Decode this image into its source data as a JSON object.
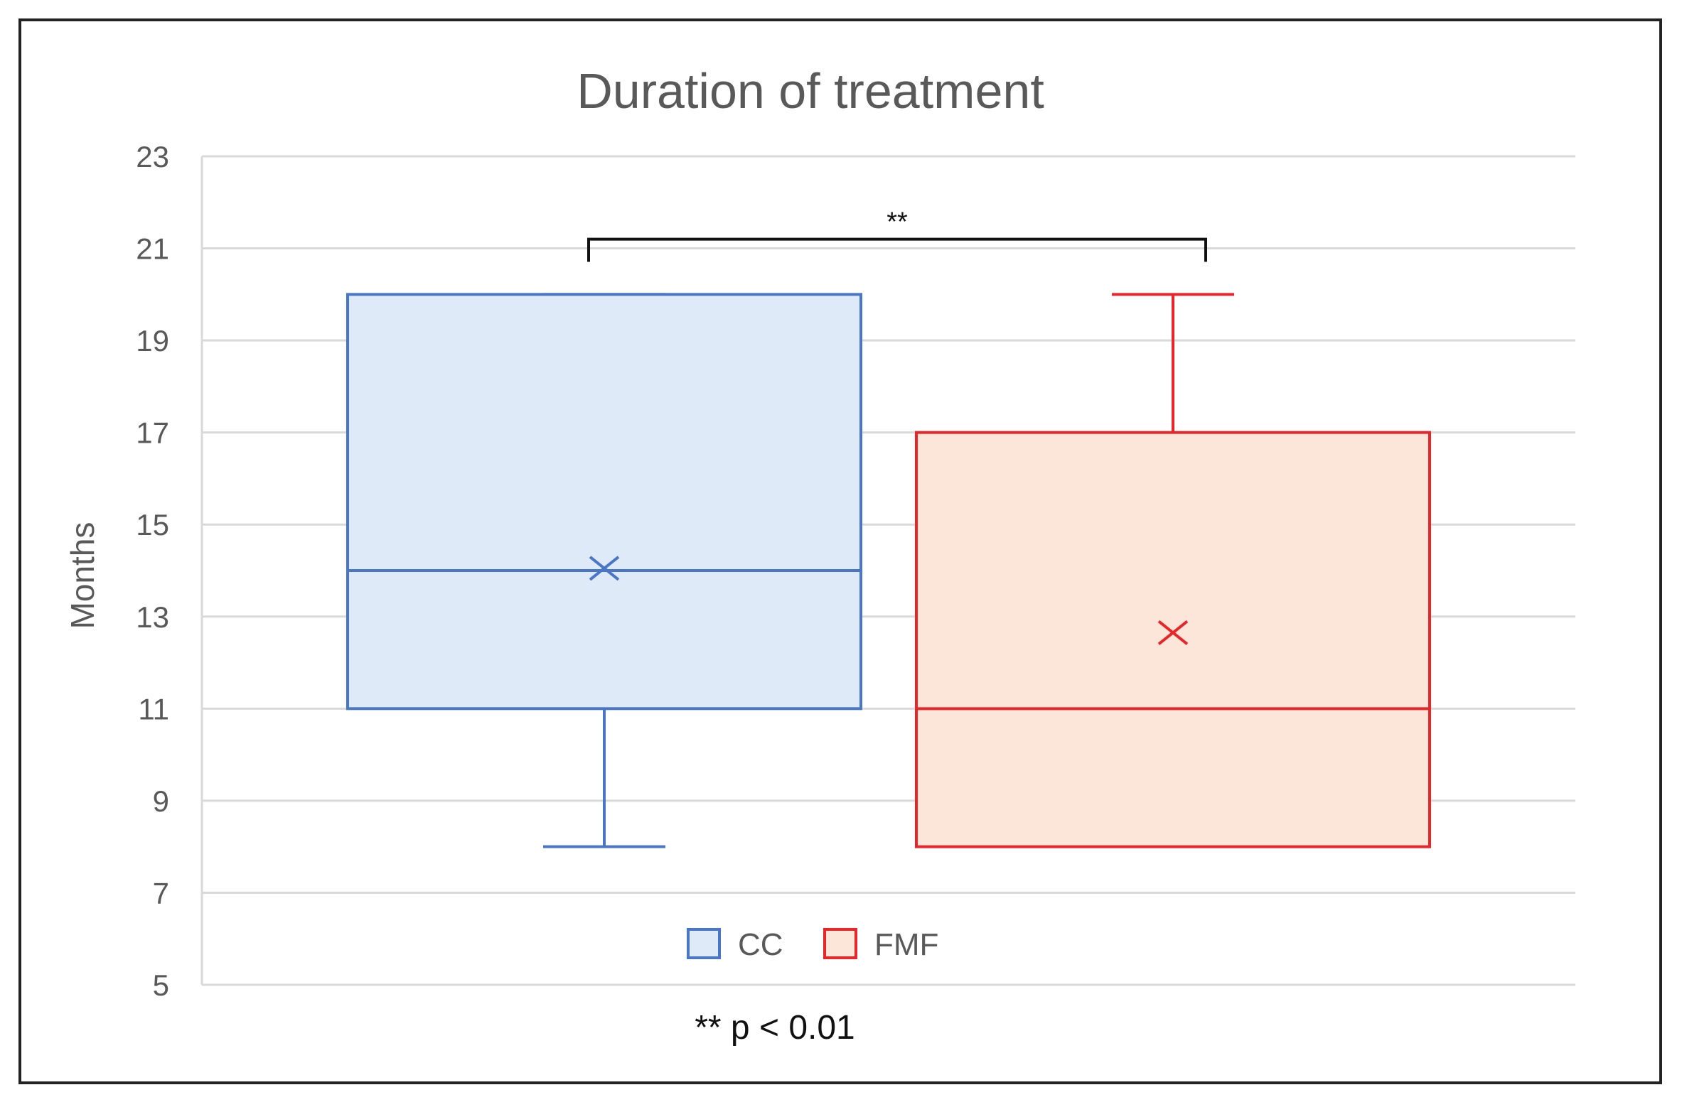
{
  "chart_data": {
    "type": "box",
    "title": "Duration of treatment",
    "ylabel": "Months",
    "xlabel": "",
    "ylim": [
      5,
      23
    ],
    "yticks": [
      "5",
      "7",
      "9",
      "11",
      "13",
      "15",
      "17",
      "19",
      "21",
      "23"
    ],
    "grid": true,
    "legend_position": "bottom-center",
    "series": [
      {
        "name": "CC",
        "min": 8,
        "q1": 11,
        "median": 14,
        "q3": 20,
        "max": 20,
        "mean": 14.05,
        "color": "#4a76c8",
        "fill": "#deeaf7"
      },
      {
        "name": "FMF",
        "min": 8,
        "q1": 8,
        "median": 11,
        "q3": 17,
        "max": 20,
        "mean": 12.65,
        "color": "#e8262a",
        "fill": "#fbe6d9"
      }
    ],
    "significance": {
      "label": "**",
      "level": 21.2,
      "drop_to": 20.8
    },
    "footnote": "** p < 0.01"
  }
}
